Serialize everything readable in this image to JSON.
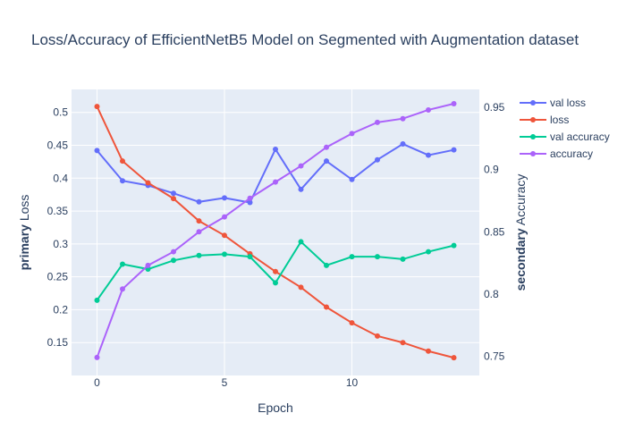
{
  "chart_data": {
    "type": "line",
    "title": "Loss/Accuracy of EfficientNetB5 Model on Segmented with Augmentation dataset",
    "xlabel": "Epoch",
    "ylabel_primary_bold": "primary",
    "ylabel_primary_rest": " Loss",
    "ylabel_secondary_bold": "secondary",
    "ylabel_secondary_rest": " Accuracy",
    "x": [
      0,
      1,
      2,
      3,
      4,
      5,
      6,
      7,
      8,
      9,
      10,
      11,
      12,
      13,
      14
    ],
    "xlim": [
      -1,
      15
    ],
    "xticks": [
      0,
      5,
      10
    ],
    "ylim_primary": [
      0.1,
      0.535
    ],
    "yticks_primary": [
      0.15,
      0.2,
      0.25,
      0.3,
      0.35,
      0.4,
      0.45,
      0.5
    ],
    "ylim_secondary": [
      0.7345,
      0.9645
    ],
    "yticks_secondary": [
      0.75,
      0.8,
      0.85,
      0.9,
      0.95
    ],
    "grid": true,
    "legend_position": "top-right",
    "series": [
      {
        "name": "val loss",
        "axis": "primary",
        "color": "#636efa",
        "values": [
          0.442,
          0.396,
          0.389,
          0.377,
          0.364,
          0.37,
          0.363,
          0.444,
          0.383,
          0.426,
          0.398,
          0.428,
          0.452,
          0.435,
          0.443
        ]
      },
      {
        "name": "loss",
        "axis": "primary",
        "color": "#ef553b",
        "values": [
          0.509,
          0.426,
          0.393,
          0.369,
          0.335,
          0.313,
          0.285,
          0.258,
          0.234,
          0.204,
          0.18,
          0.16,
          0.15,
          0.137,
          0.127
        ]
      },
      {
        "name": "val accuracy",
        "axis": "secondary",
        "color": "#00cc96",
        "values": [
          0.795,
          0.824,
          0.82,
          0.827,
          0.831,
          0.832,
          0.83,
          0.809,
          0.842,
          0.823,
          0.83,
          0.83,
          0.828,
          0.834,
          0.839
        ]
      },
      {
        "name": "accuracy",
        "axis": "secondary",
        "color": "#ab63fa",
        "values": [
          0.749,
          0.804,
          0.823,
          0.834,
          0.85,
          0.862,
          0.877,
          0.89,
          0.903,
          0.918,
          0.929,
          0.938,
          0.941,
          0.948,
          0.953
        ]
      }
    ]
  }
}
